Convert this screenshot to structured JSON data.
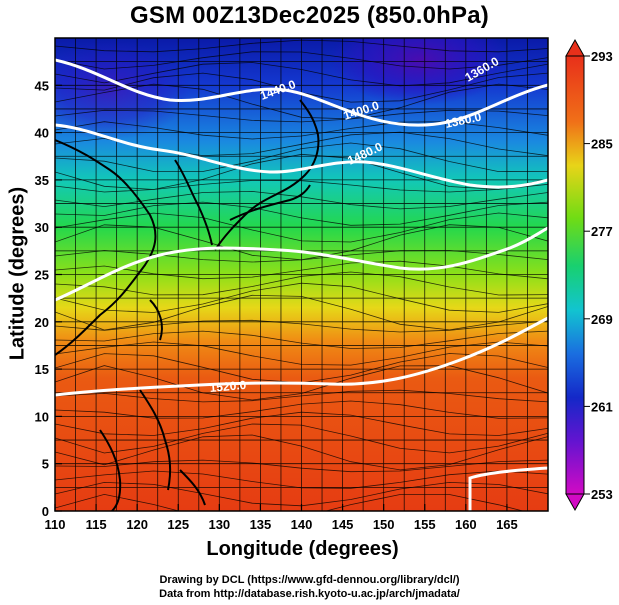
{
  "title": "GSM 00Z13Dec2025 (850.0hPa)",
  "x_axis": {
    "title": "Longitude (degrees)",
    "ticks": [
      "110",
      "115",
      "120",
      "125",
      "130",
      "135",
      "140",
      "145",
      "150",
      "155",
      "160",
      "165"
    ]
  },
  "y_axis": {
    "title": "Latitude  (degrees)",
    "ticks": [
      "0",
      "5",
      "10",
      "15",
      "20",
      "25",
      "30",
      "35",
      "40",
      "45"
    ]
  },
  "colorbar": {
    "labels": [
      "293",
      "285",
      "277",
      "269",
      "261",
      "253"
    ],
    "min": 253,
    "max": 293,
    "colors": [
      "#d000c0",
      "#7a12d6",
      "#0a1ec8",
      "#1a7ae6",
      "#10c8c8",
      "#1ad84a",
      "#9ae010",
      "#e8e010",
      "#f08a10",
      "#e84a10",
      "#e82a10"
    ]
  },
  "contours": {
    "labels": [
      "1440.0",
      "1400.0",
      "1380.0",
      "1360.0",
      "1480.0",
      "1520.0"
    ]
  },
  "credits": {
    "line1": "Drawing by DCL (https://www.gfd-dennou.org/library/dcl/)",
    "line2": "Data from http://database.rish.kyoto-u.ac.jp/arch/jmadata/"
  },
  "chart_data": {
    "type": "heatmap",
    "title": "GSM 00Z13Dec2025 (850.0hPa)",
    "xlabel": "Longitude (degrees)",
    "ylabel": "Latitude  (degrees)",
    "xlim": [
      110,
      170
    ],
    "ylim": [
      0,
      50
    ],
    "field": "temperature (colorbar 253-293)",
    "colorbar_range": [
      253,
      293
    ],
    "colorbar_ticks": [
      293,
      285,
      277,
      269,
      261,
      253
    ],
    "contour_labels": [
      "1440.0",
      "1400.0",
      "1380.0",
      "1360.0",
      "1480.0",
      "1520.0"
    ],
    "grid": true,
    "overlays": [
      "coastlines",
      "streamlines",
      "geopotential height contours"
    ]
  }
}
